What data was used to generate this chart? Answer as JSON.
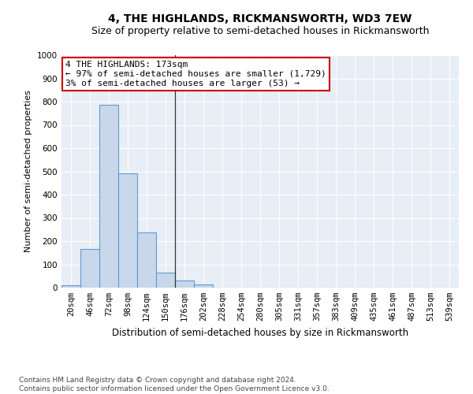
{
  "title": "4, THE HIGHLANDS, RICKMANSWORTH, WD3 7EW",
  "subtitle": "Size of property relative to semi-detached houses in Rickmansworth",
  "xlabel": "Distribution of semi-detached houses by size in Rickmansworth",
  "ylabel": "Number of semi-detached properties",
  "bar_color": "#c8d8ea",
  "bar_edge_color": "#5b9bd5",
  "background_color": "#e8eef5",
  "categories": [
    "20sqm",
    "46sqm",
    "72sqm",
    "98sqm",
    "124sqm",
    "150sqm",
    "176sqm",
    "202sqm",
    "228sqm",
    "254sqm",
    "280sqm",
    "305sqm",
    "331sqm",
    "357sqm",
    "383sqm",
    "409sqm",
    "435sqm",
    "461sqm",
    "487sqm",
    "513sqm",
    "539sqm"
  ],
  "values": [
    10,
    165,
    785,
    490,
    237,
    65,
    30,
    15,
    0,
    0,
    0,
    0,
    0,
    0,
    0,
    0,
    0,
    0,
    0,
    0,
    0
  ],
  "ylim": [
    0,
    1000
  ],
  "yticks": [
    0,
    100,
    200,
    300,
    400,
    500,
    600,
    700,
    800,
    900,
    1000
  ],
  "annotation_line1": "4 THE HIGHLANDS: 173sqm",
  "annotation_line2": "← 97% of semi-detached houses are smaller (1,729)",
  "annotation_line3": "3% of semi-detached houses are larger (53) →",
  "annotation_box_color": "#ffffff",
  "annotation_box_edge_color": "#cc0000",
  "vline_x": 5.5,
  "footer_text": "Contains HM Land Registry data © Crown copyright and database right 2024.\nContains public sector information licensed under the Open Government Licence v3.0.",
  "grid_color": "#ffffff",
  "title_fontsize": 10,
  "subtitle_fontsize": 9,
  "xlabel_fontsize": 8.5,
  "ylabel_fontsize": 8,
  "tick_fontsize": 7.5,
  "annotation_fontsize": 8,
  "footer_fontsize": 6.5
}
